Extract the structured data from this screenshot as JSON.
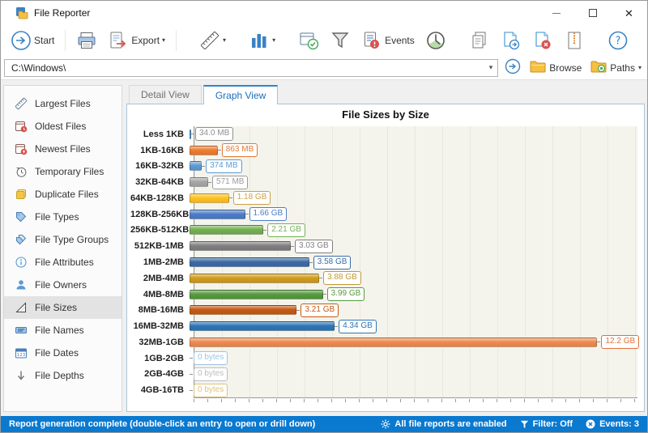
{
  "window": {
    "title": "File Reporter"
  },
  "toolbar": {
    "start_label": "Start",
    "export_label": "Export",
    "events_label": "Events"
  },
  "address": {
    "path": "C:\\Windows\\",
    "browse_label": "Browse",
    "paths_label": "Paths"
  },
  "sidebar": {
    "items": [
      {
        "label": "Largest Files",
        "icon": "largest-files-icon"
      },
      {
        "label": "Oldest Files",
        "icon": "oldest-files-icon"
      },
      {
        "label": "Newest Files",
        "icon": "newest-files-icon"
      },
      {
        "label": "Temporary Files",
        "icon": "temporary-files-icon"
      },
      {
        "label": "Duplicate Files",
        "icon": "duplicate-files-icon"
      },
      {
        "label": "File Types",
        "icon": "file-types-icon"
      },
      {
        "label": "File Type Groups",
        "icon": "file-type-groups-icon"
      },
      {
        "label": "File Attributes",
        "icon": "file-attributes-icon"
      },
      {
        "label": "File Owners",
        "icon": "file-owners-icon"
      },
      {
        "label": "File Sizes",
        "icon": "file-sizes-icon",
        "selected": true
      },
      {
        "label": "File Names",
        "icon": "file-names-icon"
      },
      {
        "label": "File Dates",
        "icon": "file-dates-icon"
      },
      {
        "label": "File Depths",
        "icon": "file-depths-icon"
      }
    ]
  },
  "tabs": [
    {
      "label": "Detail View",
      "active": false
    },
    {
      "label": "Graph View",
      "active": true
    }
  ],
  "chart_data": {
    "type": "bar",
    "orientation": "horizontal",
    "title": "File Sizes by Size",
    "categories": [
      "Less 1KB",
      "1KB-16KB",
      "16KB-32KB",
      "32KB-64KB",
      "64KB-128KB",
      "128KB-256KB",
      "256KB-512KB",
      "512KB-1MB",
      "1MB-2MB",
      "2MB-4MB",
      "4MB-8MB",
      "8MB-16MB",
      "16MB-32MB",
      "32MB-1GB",
      "1GB-2GB",
      "2GB-4GB",
      "4GB-16TB"
    ],
    "values": [
      "34.0 MB",
      "863 MB",
      "374 MB",
      "571 MB",
      "1.18 GB",
      "1.66 GB",
      "2.21 GB",
      "3.03 GB",
      "3.58 GB",
      "3.88 GB",
      "3.99 GB",
      "3.21 GB",
      "4.34 GB",
      "12.2 GB",
      "0 bytes",
      "0 bytes",
      "0 bytes"
    ],
    "values_gb": [
      0.033,
      0.843,
      0.365,
      0.558,
      1.18,
      1.66,
      2.21,
      3.03,
      3.58,
      3.88,
      3.99,
      3.21,
      4.34,
      12.2,
      0,
      0,
      0
    ],
    "xlim_gb": [
      0,
      13.4
    ],
    "bar_colors": [
      "#5b9bd5",
      "#ed7d31",
      "#5b9bd5",
      "#a6a6a6",
      "#ffc120",
      "#4d7cc7",
      "#74b152",
      "#7f7f7f",
      "#3d6aa5",
      "#d09b1e",
      "#569a3e",
      "#c55a11",
      "#2e75b6",
      "#ef8a50",
      "",
      "",
      ""
    ],
    "label_colors": [
      "#8f8f8f",
      "#e07a35",
      "#5b9bd5",
      "#9b9b9b",
      "#c8a24a",
      "#4d7cc7",
      "#74b152",
      "#7f7f7f",
      "#3d6aa5",
      "#c09a3a",
      "#569a3e",
      "#c55a11",
      "#2e75b6",
      "#e0713a",
      "#9dc3e6",
      "#bdbdbd",
      "#dfc27a"
    ],
    "grid": "vertical",
    "legend": "none"
  },
  "statusbar": {
    "message": "Report generation complete (double-click an entry to open or drill down)",
    "reports_status": "All file reports are enabled",
    "filter_status": "Filter: Off",
    "events_status": "Events: 3",
    "accent_color": "#0a79d0"
  }
}
